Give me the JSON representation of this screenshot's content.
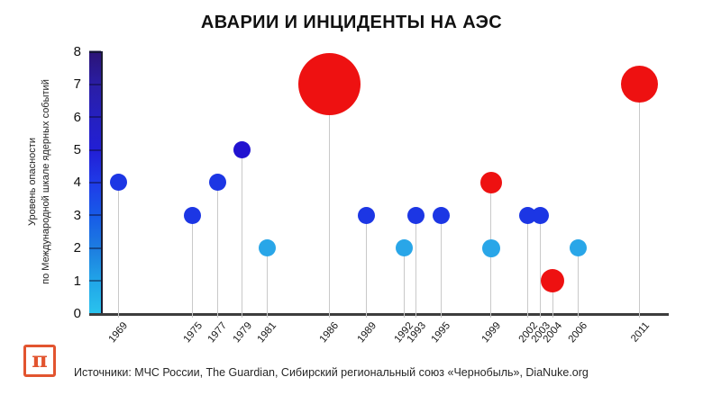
{
  "title": "АВАРИИ И ИНЦИДЕНТЫ НА АЭС",
  "footer": {
    "logo_glyph": "π",
    "logo_color": "#e2542f",
    "sources": "Источники: МЧС России, The Guardian, Сибирский региональный союз «Чернобыль», DiaNuke.org"
  },
  "chart_data": {
    "type": "scatter",
    "title": "АВАРИИ И ИНЦИДЕНТЫ НА АЭС",
    "ylabel_line1": "Уровень опасности",
    "ylabel_line2": "по Международной шкале ядерных событий",
    "ylim": [
      0,
      8
    ],
    "y_ticks": [
      0,
      1,
      2,
      3,
      4,
      5,
      6,
      7,
      8
    ],
    "x_ticks": [
      1969,
      1975,
      1977,
      1979,
      1981,
      1986,
      1989,
      1992,
      1993,
      1995,
      1999,
      2002,
      2003,
      2004,
      2006,
      2011
    ],
    "grid": false,
    "legend": false,
    "colorbar_stops_bottom_to_top": [
      "#2ac4ee",
      "#21a6e8",
      "#1d7ee0",
      "#175ce8",
      "#1f3ce8",
      "#221fd6",
      "#2520c0",
      "#2a1ea6",
      "#2b1478"
    ],
    "colors": {
      "blue": "#1c36e4",
      "dark-blue": "#2112d0",
      "light-blue": "#29a6e8",
      "red": "#ee1111"
    },
    "points": [
      {
        "year": 1969,
        "level": 4,
        "color": "blue",
        "radius": 9.5
      },
      {
        "year": 1975,
        "level": 3,
        "color": "blue",
        "radius": 9.5
      },
      {
        "year": 1977,
        "level": 4,
        "color": "blue",
        "radius": 9.5
      },
      {
        "year": 1979,
        "level": 5,
        "color": "dark-blue",
        "radius": 9.5
      },
      {
        "year": 1981,
        "level": 2,
        "color": "light-blue",
        "radius": 9.5
      },
      {
        "year": 1986,
        "level": 7,
        "color": "red",
        "radius": 34.5
      },
      {
        "year": 1989,
        "level": 3,
        "color": "blue",
        "radius": 9.5
      },
      {
        "year": 1992,
        "level": 2,
        "color": "light-blue",
        "radius": 9.5
      },
      {
        "year": 1993,
        "level": 3,
        "color": "blue",
        "radius": 9.5
      },
      {
        "year": 1995,
        "level": 3,
        "color": "blue",
        "radius": 9.5
      },
      {
        "year": 1999,
        "level": 4,
        "color": "red",
        "radius": 12
      },
      {
        "year": 1999,
        "level": 2,
        "color": "light-blue",
        "radius": 10
      },
      {
        "year": 2002,
        "level": 3,
        "color": "blue",
        "radius": 9.5
      },
      {
        "year": 2003,
        "level": 3,
        "color": "blue",
        "radius": 9.5
      },
      {
        "year": 2004,
        "level": 1,
        "color": "red",
        "radius": 13
      },
      {
        "year": 2006,
        "level": 2,
        "color": "light-blue",
        "radius": 9.5
      },
      {
        "year": 2011,
        "level": 7,
        "color": "red",
        "radius": 20.5
      }
    ]
  }
}
